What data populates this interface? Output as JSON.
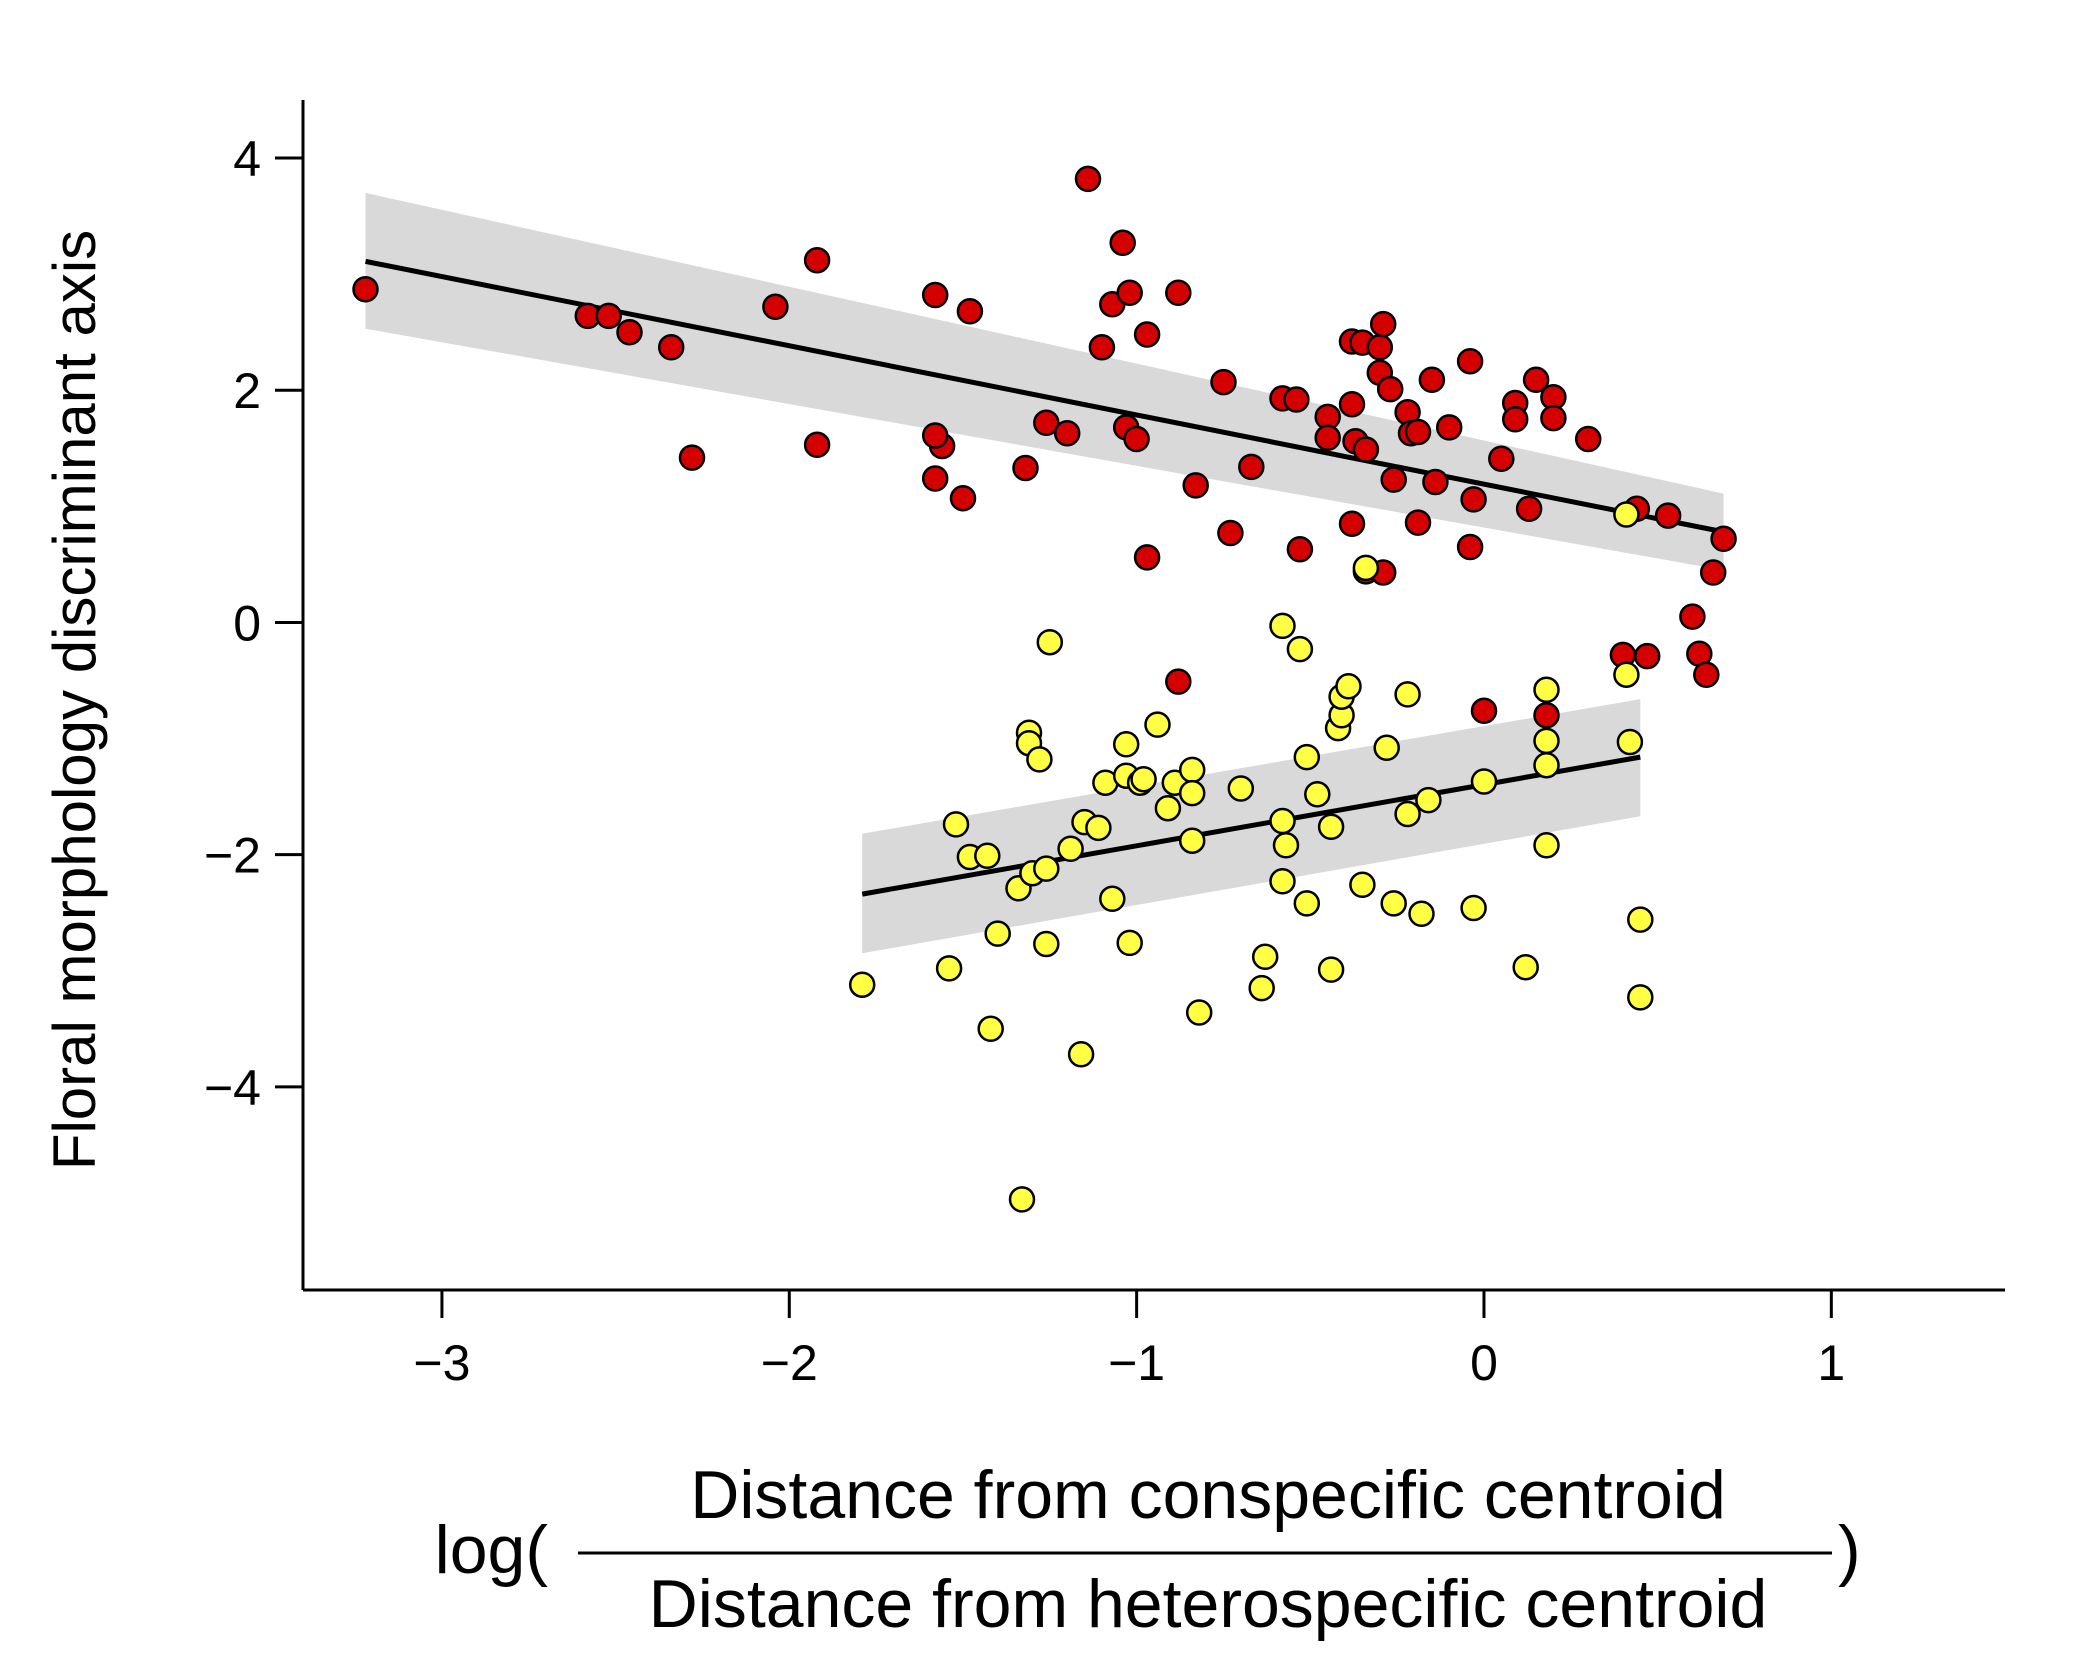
{
  "chart_data": {
    "type": "scatter",
    "ylabel": "Floral morphology discriminant axis",
    "xlabel": {
      "prefix": "log(",
      "numerator": "Distance from conspecific centroid",
      "denominator": "Distance from heterospecific centroid",
      "suffix": ")"
    },
    "xlim": [
      -3.4,
      1.5
    ],
    "ylim": [
      -5.75,
      4.5
    ],
    "x_ticks": [
      -3,
      -2,
      -1,
      0,
      1
    ],
    "x_tick_labels": [
      "−3",
      "−2",
      "−1",
      "0",
      "1"
    ],
    "y_ticks": [
      4,
      2,
      0,
      -2,
      -4
    ],
    "y_tick_labels": [
      "4",
      "2",
      "0",
      "−2",
      "−4"
    ],
    "grid": false,
    "series": [
      {
        "color": "#d40000",
        "points": [
          [
            -3.22,
            2.87
          ],
          [
            -2.58,
            2.64
          ],
          [
            -2.52,
            2.64
          ],
          [
            -2.46,
            2.5
          ],
          [
            -2.34,
            2.37
          ],
          [
            -2.28,
            1.42
          ],
          [
            -2.04,
            2.72
          ],
          [
            -1.92,
            3.12
          ],
          [
            -1.92,
            1.53
          ],
          [
            -1.58,
            2.82
          ],
          [
            -1.56,
            1.52
          ],
          [
            -1.58,
            1.61
          ],
          [
            -1.58,
            1.24
          ],
          [
            -1.48,
            2.68
          ],
          [
            -1.5,
            1.07
          ],
          [
            -1.32,
            1.33
          ],
          [
            -1.26,
            1.72
          ],
          [
            -1.2,
            1.63
          ],
          [
            -1.14,
            3.82
          ],
          [
            -1.1,
            2.37
          ],
          [
            -1.07,
            2.74
          ],
          [
            -1.04,
            3.27
          ],
          [
            -1.02,
            2.84
          ],
          [
            -1.03,
            1.68
          ],
          [
            -1.0,
            1.58
          ],
          [
            -0.97,
            2.48
          ],
          [
            -0.97,
            0.56
          ],
          [
            -0.88,
            2.84
          ],
          [
            -0.88,
            -0.51
          ],
          [
            -0.83,
            1.18
          ],
          [
            -0.75,
            2.07
          ],
          [
            -0.73,
            0.77
          ],
          [
            -0.67,
            1.34
          ],
          [
            -0.58,
            1.93
          ],
          [
            -0.54,
            1.92
          ],
          [
            -0.53,
            0.63
          ],
          [
            -0.45,
            1.77
          ],
          [
            -0.45,
            1.59
          ],
          [
            -0.38,
            2.42
          ],
          [
            -0.35,
            2.41
          ],
          [
            -0.38,
            1.88
          ],
          [
            -0.37,
            1.56
          ],
          [
            -0.34,
            1.49
          ],
          [
            -0.38,
            0.85
          ],
          [
            -0.34,
            0.44
          ],
          [
            -0.3,
            2.37
          ],
          [
            -0.3,
            2.15
          ],
          [
            -0.29,
            2.57
          ],
          [
            -0.27,
            2.01
          ],
          [
            -0.29,
            0.43
          ],
          [
            -0.26,
            1.23
          ],
          [
            -0.22,
            1.81
          ],
          [
            -0.21,
            1.63
          ],
          [
            -0.19,
            1.64
          ],
          [
            -0.19,
            0.86
          ],
          [
            -0.15,
            2.09
          ],
          [
            -0.14,
            1.21
          ],
          [
            -0.1,
            1.68
          ],
          [
            -0.04,
            2.25
          ],
          [
            -0.03,
            1.06
          ],
          [
            -0.04,
            0.65
          ],
          [
            0.0,
            -0.76
          ],
          [
            0.05,
            1.41
          ],
          [
            0.09,
            1.89
          ],
          [
            0.09,
            1.75
          ],
          [
            0.13,
            0.98
          ],
          [
            0.15,
            2.09
          ],
          [
            0.18,
            -0.8
          ],
          [
            0.2,
            1.94
          ],
          [
            0.2,
            1.76
          ],
          [
            0.3,
            1.58
          ],
          [
            0.4,
            -0.28
          ],
          [
            0.44,
            0.98
          ],
          [
            0.47,
            -0.29
          ],
          [
            0.53,
            0.92
          ],
          [
            0.6,
            0.05
          ],
          [
            0.62,
            -0.27
          ],
          [
            0.64,
            -0.45
          ],
          [
            0.66,
            0.43
          ],
          [
            0.69,
            0.72
          ]
        ]
      },
      {
        "color": "#ffff44",
        "points": [
          [
            -1.79,
            -3.12
          ],
          [
            -1.54,
            -2.98
          ],
          [
            -1.52,
            -1.74
          ],
          [
            -1.48,
            -2.02
          ],
          [
            -1.43,
            -2.01
          ],
          [
            -1.42,
            -3.5
          ],
          [
            -1.4,
            -2.68
          ],
          [
            -1.34,
            -2.29
          ],
          [
            -1.31,
            -0.95
          ],
          [
            -1.31,
            -1.04
          ],
          [
            -1.3,
            -2.16
          ],
          [
            -1.28,
            -1.18
          ],
          [
            -1.26,
            -2.77
          ],
          [
            -1.26,
            -2.12
          ],
          [
            -1.25,
            -0.17
          ],
          [
            -1.19,
            -1.95
          ],
          [
            -1.16,
            -3.72
          ],
          [
            -1.15,
            -1.72
          ],
          [
            -1.11,
            -1.77
          ],
          [
            -1.09,
            -1.38
          ],
          [
            -1.07,
            -2.38
          ],
          [
            -1.03,
            -1.05
          ],
          [
            -1.03,
            -1.32
          ],
          [
            -1.02,
            -2.76
          ],
          [
            -0.99,
            -1.38
          ],
          [
            -0.98,
            -1.35
          ],
          [
            -0.94,
            -0.88
          ],
          [
            -0.91,
            -1.6
          ],
          [
            -0.89,
            -1.38
          ],
          [
            -0.84,
            -1.27
          ],
          [
            -0.84,
            -1.47
          ],
          [
            -0.84,
            -1.88
          ],
          [
            -0.82,
            -3.36
          ],
          [
            -0.7,
            -1.43
          ],
          [
            -0.64,
            -3.15
          ],
          [
            -0.63,
            -2.88
          ],
          [
            -0.58,
            -0.03
          ],
          [
            -0.58,
            -1.71
          ],
          [
            -0.57,
            -1.92
          ],
          [
            -0.58,
            -2.23
          ],
          [
            -0.53,
            -0.23
          ],
          [
            -0.51,
            -1.16
          ],
          [
            -0.51,
            -2.42
          ],
          [
            -0.48,
            -1.48
          ],
          [
            -0.44,
            -1.76
          ],
          [
            -0.44,
            -2.99
          ],
          [
            -0.42,
            -0.91
          ],
          [
            -0.41,
            -0.8
          ],
          [
            -0.41,
            -0.64
          ],
          [
            -0.39,
            -0.55
          ],
          [
            -0.35,
            -2.26
          ],
          [
            -0.34,
            0.47
          ],
          [
            -0.28,
            -1.08
          ],
          [
            -0.26,
            -2.42
          ],
          [
            -0.22,
            -1.65
          ],
          [
            -0.22,
            -0.62
          ],
          [
            -0.18,
            -2.51
          ],
          [
            -0.16,
            -1.53
          ],
          [
            -0.03,
            -2.46
          ],
          [
            0.0,
            -1.37
          ],
          [
            0.12,
            -2.97
          ],
          [
            0.18,
            -0.58
          ],
          [
            0.18,
            -1.02
          ],
          [
            0.18,
            -1.23
          ],
          [
            0.18,
            -1.92
          ],
          [
            0.41,
            0.93
          ],
          [
            0.41,
            -0.45
          ],
          [
            0.42,
            -1.03
          ],
          [
            0.45,
            -2.56
          ],
          [
            0.45,
            -3.23
          ],
          [
            -1.33,
            -4.97
          ]
        ]
      }
    ],
    "fits": [
      {
        "x": [
          -3.22,
          0.69
        ],
        "y": [
          3.11,
          0.78
        ],
        "ci_upper": [
          3.7,
          1.11
        ],
        "ci_lower": [
          2.53,
          0.45
        ]
      },
      {
        "x": [
          -1.79,
          0.45
        ],
        "y": [
          -2.34,
          -1.16
        ],
        "ci_upper": [
          -1.82,
          -0.66
        ],
        "ci_lower": [
          -2.85,
          -1.67
        ]
      }
    ],
    "ci_color": "#d9d9d9",
    "fit_color": "#000000"
  }
}
